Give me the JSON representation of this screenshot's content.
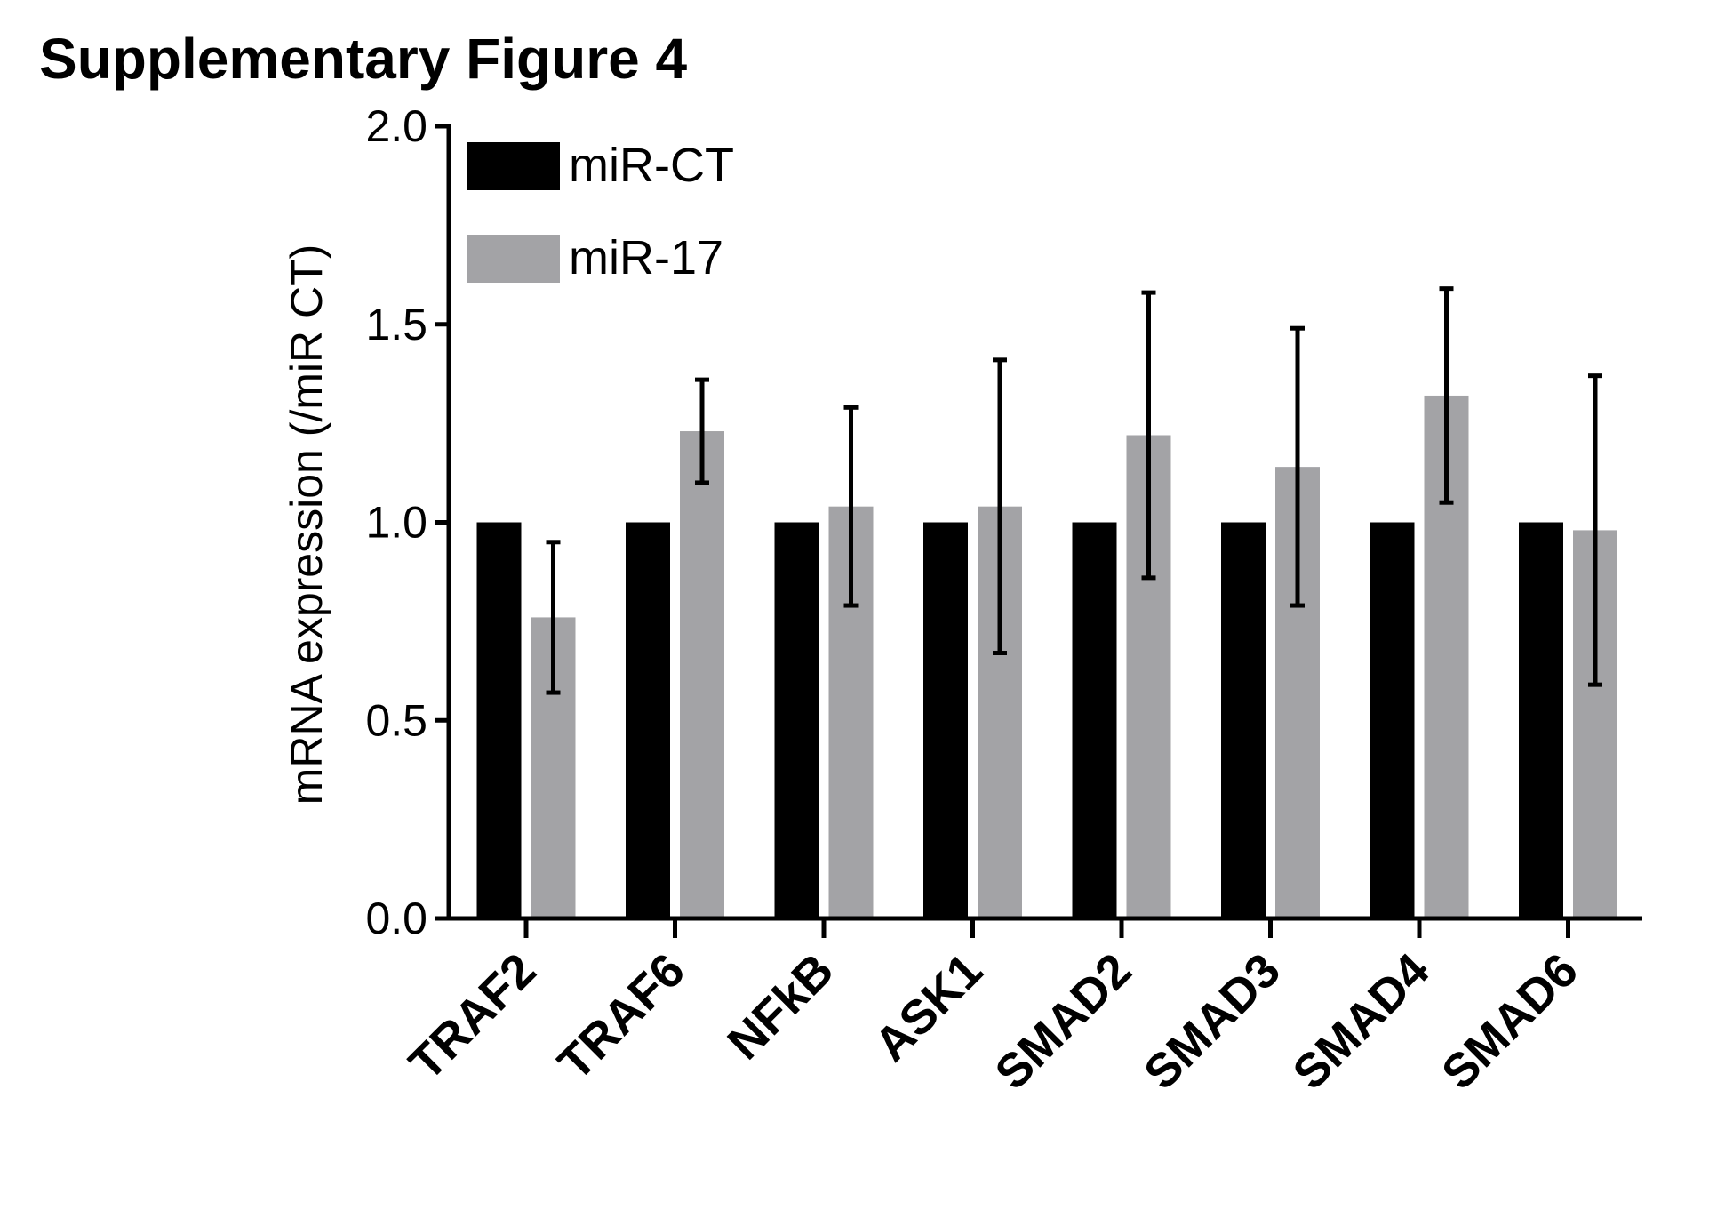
{
  "chart_data": {
    "type": "bar",
    "title": "Supplementary Figure 4",
    "xlabel": "",
    "ylabel": "mRNA expression (/miR CT)",
    "ylim": [
      0,
      2.0
    ],
    "yticks": [
      "0.0",
      "0.5",
      "1.0",
      "1.5",
      "2.0"
    ],
    "categories": [
      "TRAF2",
      "TRAF6",
      "NFkB",
      "ASK1",
      "SMAD2",
      "SMAD3",
      "SMAD4",
      "SMAD6"
    ],
    "series": [
      {
        "name": "miR-CT",
        "color": "#000000",
        "values": [
          1.0,
          1.0,
          1.0,
          1.0,
          1.0,
          1.0,
          1.0,
          1.0
        ],
        "error": [
          0,
          0,
          0,
          0,
          0,
          0,
          0,
          0
        ]
      },
      {
        "name": "miR-17",
        "color": "#a3a3a6",
        "values": [
          0.76,
          1.23,
          1.04,
          1.04,
          1.22,
          1.14,
          1.32,
          0.98
        ],
        "error": [
          0.19,
          0.13,
          0.25,
          0.37,
          0.36,
          0.35,
          0.27,
          0.39
        ]
      }
    ],
    "legend": "top-left",
    "grid": false
  }
}
